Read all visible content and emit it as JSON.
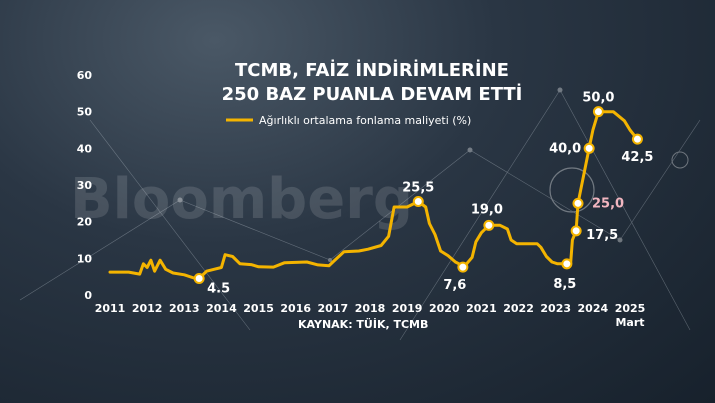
{
  "title_line1": "TCMB, FAİZ İNDİRİMLERİNE",
  "title_line2": "250 BAZ PUANLA DEVAM ETTİ",
  "source": "KAYNAK: TÜİK, TCMB",
  "watermark": "Bloomberg",
  "colors": {
    "line": "#f4b400",
    "marker_fill": "#ffffff",
    "highlight": "#f2b6c0",
    "text": "#ffffff"
  },
  "chart_data": {
    "type": "line",
    "title": "TCMB, FAİZ İNDİRİMLERİNE 250 BAZ PUANLA DEVAM ETTİ",
    "xlabel": "",
    "ylabel": "",
    "ylim": [
      0,
      60
    ],
    "yticks": [
      0,
      10,
      20,
      30,
      40,
      50,
      60
    ],
    "xticks": [
      "2011",
      "2012",
      "2013",
      "2014",
      "2015",
      "2016",
      "2017",
      "2018",
      "2019",
      "2020",
      "2021",
      "2022",
      "2023",
      "2024",
      "2025"
    ],
    "xtick_sub": {
      "2025": "Mart"
    },
    "grid": false,
    "legend_position": "top",
    "series": [
      {
        "name": "Ağırlıklı ortalama fonlama maliyeti (%)",
        "points": [
          [
            2011.0,
            6.25
          ],
          [
            2011.5,
            6.25
          ],
          [
            2011.8,
            5.7
          ],
          [
            2011.9,
            8.5
          ],
          [
            2012.0,
            7.5
          ],
          [
            2012.1,
            9.5
          ],
          [
            2012.2,
            6.5
          ],
          [
            2012.35,
            9.5
          ],
          [
            2012.5,
            7.0
          ],
          [
            2012.7,
            6.0
          ],
          [
            2013.0,
            5.5
          ],
          [
            2013.3,
            4.5
          ],
          [
            2013.4,
            4.5
          ],
          [
            2013.6,
            6.5
          ],
          [
            2013.8,
            7.0
          ],
          [
            2014.0,
            7.5
          ],
          [
            2014.1,
            11.0
          ],
          [
            2014.3,
            10.5
          ],
          [
            2014.5,
            8.5
          ],
          [
            2014.8,
            8.3
          ],
          [
            2015.0,
            7.7
          ],
          [
            2015.4,
            7.6
          ],
          [
            2015.7,
            8.8
          ],
          [
            2016.0,
            8.9
          ],
          [
            2016.3,
            9.0
          ],
          [
            2016.6,
            8.2
          ],
          [
            2016.9,
            8.0
          ],
          [
            2017.0,
            9.0
          ],
          [
            2017.3,
            11.8
          ],
          [
            2017.7,
            12.0
          ],
          [
            2017.95,
            12.5
          ],
          [
            2018.3,
            13.5
          ],
          [
            2018.5,
            16.0
          ],
          [
            2018.65,
            24.0
          ],
          [
            2019.0,
            24.0
          ],
          [
            2019.3,
            25.5
          ],
          [
            2019.5,
            24.0
          ],
          [
            2019.6,
            19.5
          ],
          [
            2019.75,
            16.5
          ],
          [
            2019.9,
            12.0
          ],
          [
            2020.1,
            10.75
          ],
          [
            2020.3,
            9.0
          ],
          [
            2020.45,
            8.25
          ],
          [
            2020.5,
            7.6
          ],
          [
            2020.6,
            8.5
          ],
          [
            2020.75,
            10.25
          ],
          [
            2020.85,
            14.5
          ],
          [
            2021.0,
            17.0
          ],
          [
            2021.2,
            19.0
          ],
          [
            2021.5,
            19.0
          ],
          [
            2021.7,
            18.0
          ],
          [
            2021.8,
            15.0
          ],
          [
            2021.95,
            14.0
          ],
          [
            2022.5,
            14.0
          ],
          [
            2022.6,
            13.0
          ],
          [
            2022.75,
            10.5
          ],
          [
            2022.9,
            9.0
          ],
          [
            2023.05,
            8.5
          ],
          [
            2023.3,
            8.5
          ],
          [
            2023.4,
            8.5
          ],
          [
            2023.45,
            15.0
          ],
          [
            2023.55,
            17.5
          ],
          [
            2023.6,
            25.0
          ],
          [
            2023.7,
            30.0
          ],
          [
            2023.8,
            35.0
          ],
          [
            2023.9,
            40.0
          ],
          [
            2024.0,
            45.0
          ],
          [
            2024.15,
            50.0
          ],
          [
            2024.55,
            50.0
          ],
          [
            2024.85,
            47.5
          ],
          [
            2025.0,
            45.0
          ],
          [
            2025.2,
            42.5
          ]
        ]
      }
    ],
    "annotations": [
      {
        "label": "4.5",
        "x": 2013.4,
        "y": 4.5,
        "color": "#ffffff"
      },
      {
        "label": "25,5",
        "x": 2019.3,
        "y": 25.5,
        "color": "#ffffff"
      },
      {
        "label": "7,6",
        "x": 2020.5,
        "y": 7.6,
        "color": "#ffffff"
      },
      {
        "label": "19,0",
        "x": 2021.2,
        "y": 19.0,
        "color": "#ffffff"
      },
      {
        "label": "8,5",
        "x": 2023.3,
        "y": 8.5,
        "color": "#ffffff"
      },
      {
        "label": "17,5",
        "x": 2023.55,
        "y": 17.5,
        "color": "#ffffff"
      },
      {
        "label": "25,0",
        "x": 2023.6,
        "y": 25.0,
        "color": "#f2b6c0"
      },
      {
        "label": "40,0",
        "x": 2023.9,
        "y": 40.0,
        "color": "#ffffff"
      },
      {
        "label": "50,0",
        "x": 2024.15,
        "y": 50.0,
        "color": "#ffffff"
      },
      {
        "label": "42,5",
        "x": 2025.2,
        "y": 42.5,
        "color": "#ffffff"
      }
    ]
  }
}
